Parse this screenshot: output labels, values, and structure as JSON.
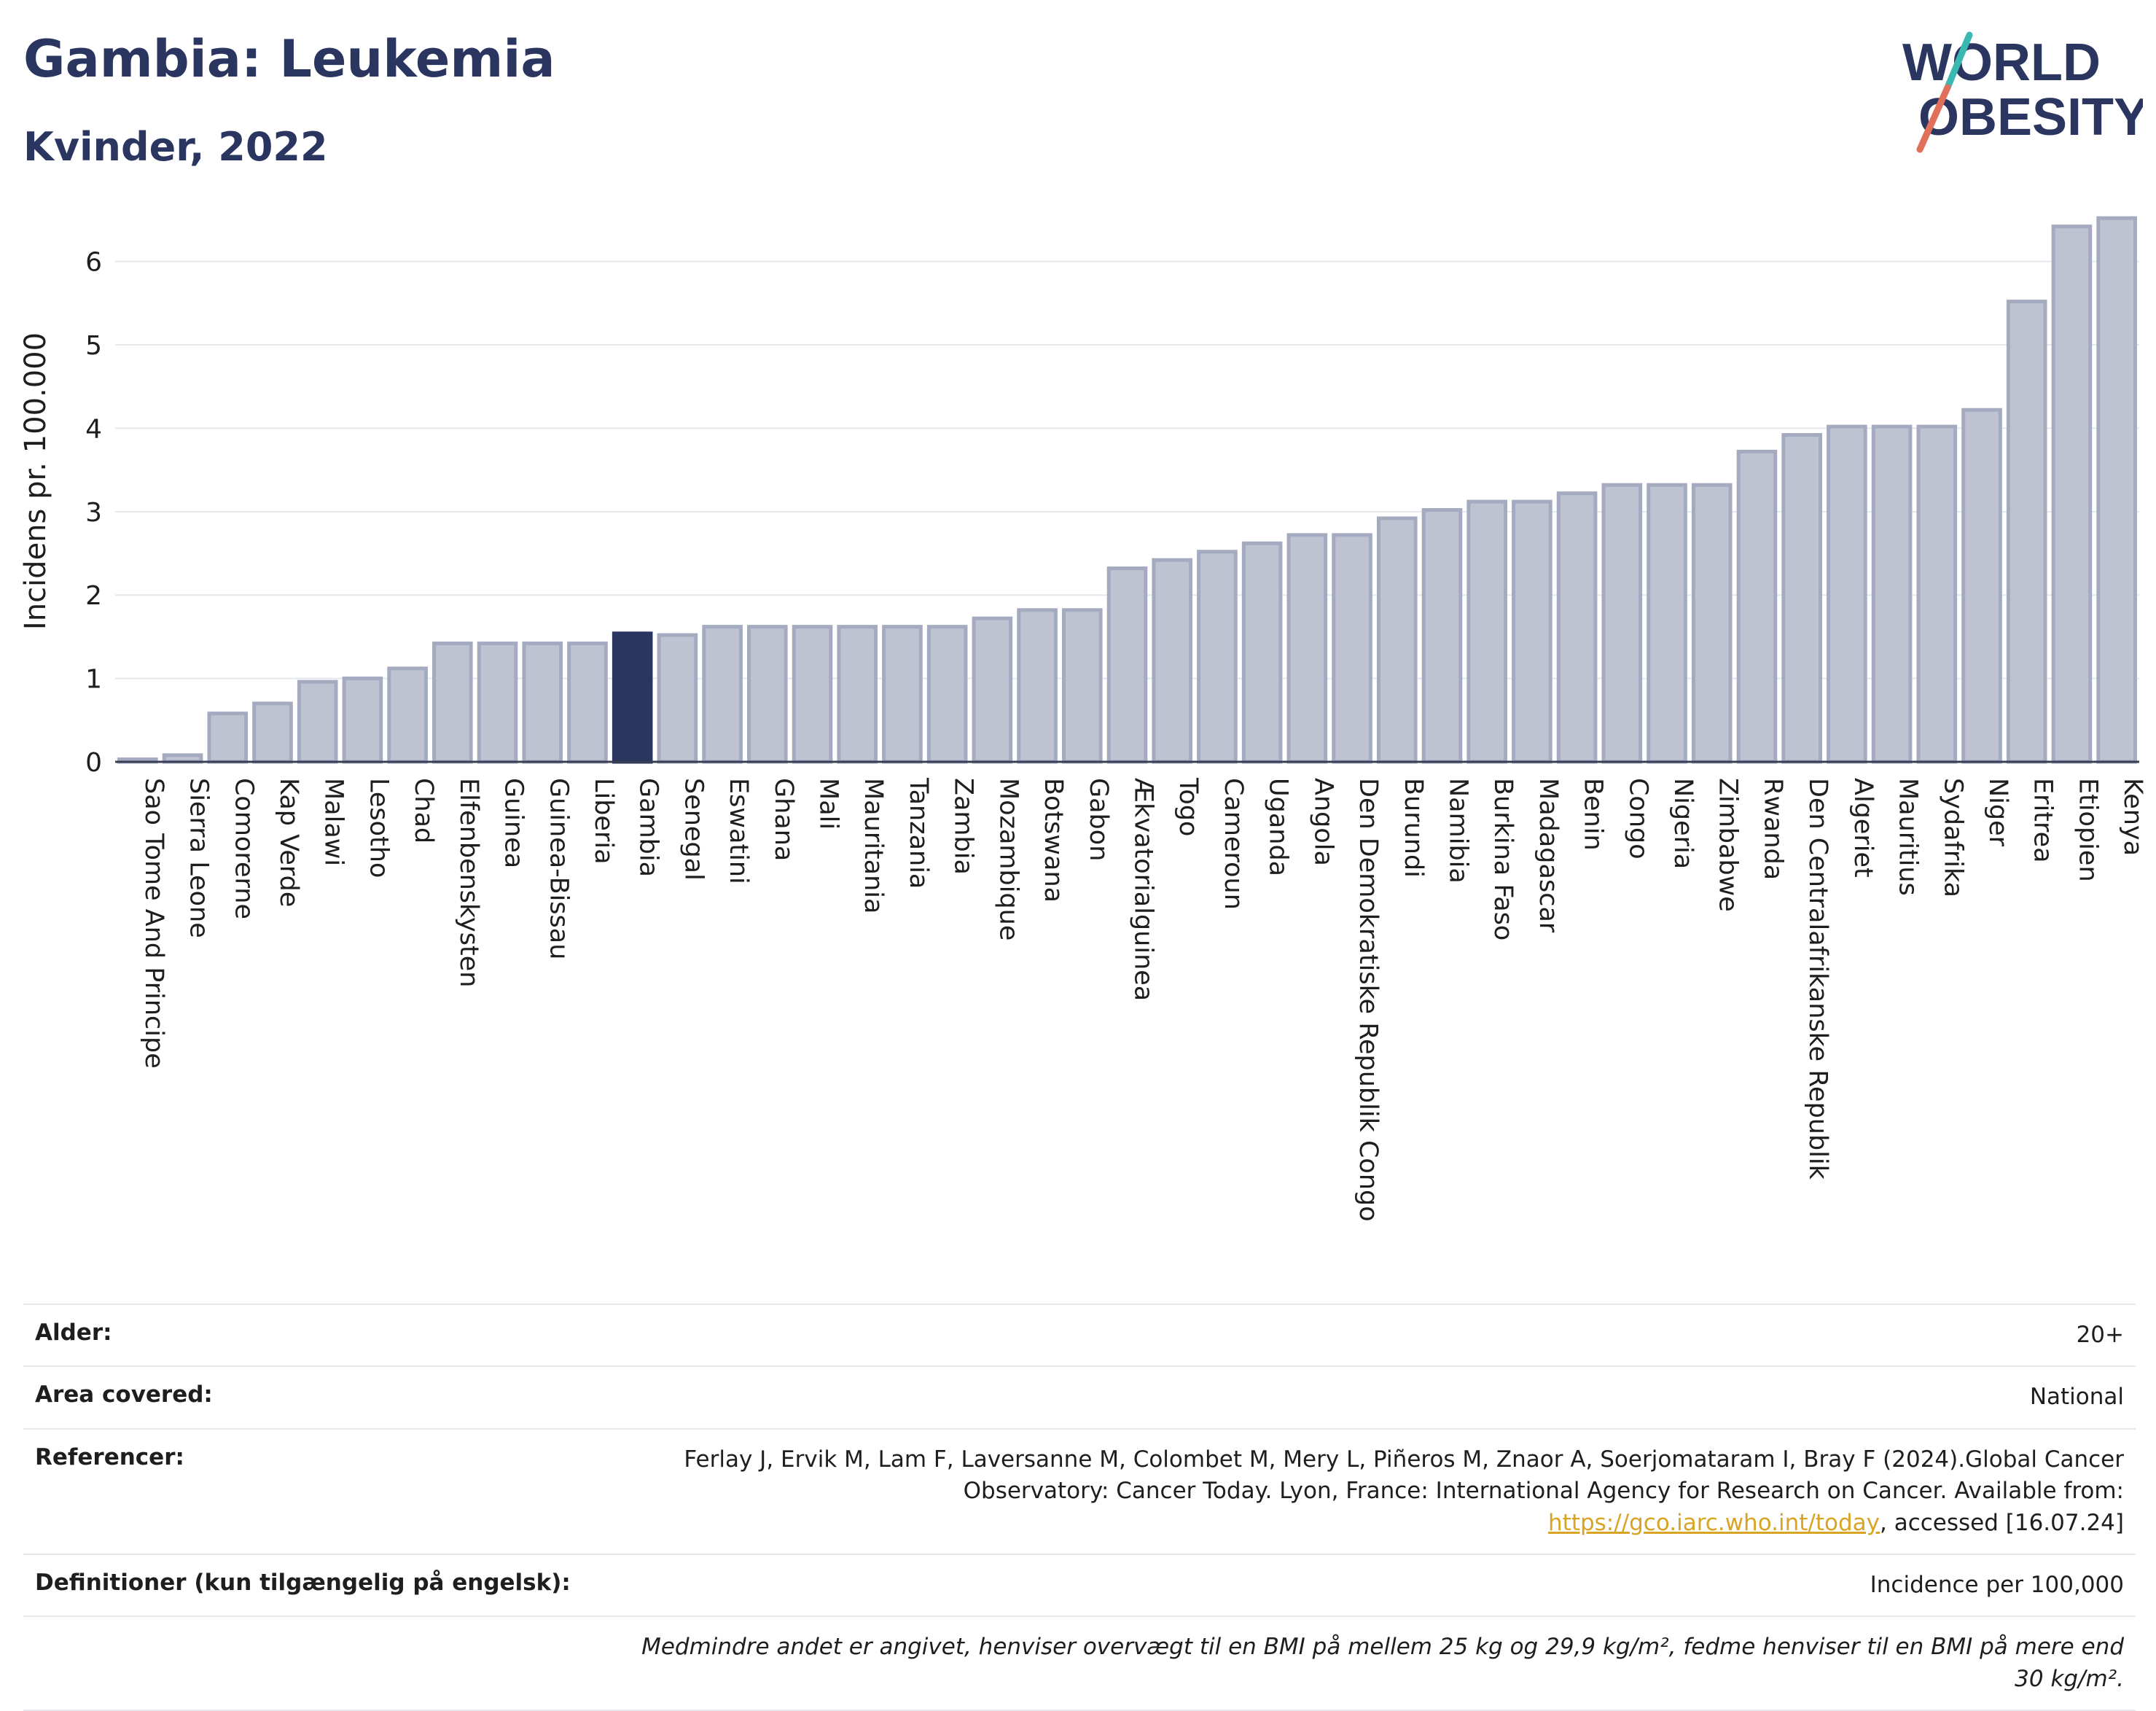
{
  "header": {
    "title": "Gambia: Leukemia",
    "subtitle": "Kvinder, 2022"
  },
  "logo": {
    "line1": "WORLD",
    "line2": "OBESITY"
  },
  "colors": {
    "bar_fill": "#bfc3d1",
    "bar_stroke": "#a4aabf",
    "highlight": "#2a3560",
    "axis_text": "#1e1e1e"
  },
  "chart_data": {
    "type": "bar",
    "title": "Gambia: Leukemia",
    "subtitle": "Kvinder, 2022",
    "ylabel": "Incidens pr. 100.000",
    "xlabel": "",
    "ylim": [
      0,
      6.6
    ],
    "yticks": [
      0,
      1,
      2,
      3,
      4,
      5,
      6
    ],
    "grid": true,
    "highlight": "Gambia",
    "categories": [
      "Sao Tome And Principe",
      "Sierra Leone",
      "Comorerne",
      "Kap Verde",
      "Malawi",
      "Lesotho",
      "Chad",
      "Elfenbenskysten",
      "Guinea",
      "Guinea-Bissau",
      "Liberia",
      "Gambia",
      "Senegal",
      "Eswatini",
      "Ghana",
      "Mali",
      "Mauritania",
      "Tanzania",
      "Zambia",
      "Mozambique",
      "Botswana",
      "Gabon",
      "Ækvatorialguinea",
      "Togo",
      "Cameroun",
      "Uganda",
      "Angola",
      "Den Demokratiske Republik Congo",
      "Burundi",
      "Namibia",
      "Burkina Faso",
      "Madagascar",
      "Benin",
      "Congo",
      "Nigeria",
      "Zimbabwe",
      "Rwanda",
      "Den Centralafrikanske Republik",
      "Algeriet",
      "Mauritius",
      "Sydafrika",
      "Niger",
      "Eritrea",
      "Etiopien",
      "Kenya"
    ],
    "values": [
      0.03,
      0.08,
      0.58,
      0.7,
      0.96,
      1.0,
      1.12,
      1.42,
      1.42,
      1.42,
      1.42,
      1.54,
      1.52,
      1.62,
      1.62,
      1.62,
      1.62,
      1.62,
      1.62,
      1.72,
      1.82,
      1.82,
      2.32,
      2.42,
      2.52,
      2.62,
      2.72,
      2.72,
      2.92,
      3.02,
      3.12,
      3.12,
      3.22,
      3.32,
      3.32,
      3.32,
      3.72,
      3.92,
      4.02,
      4.02,
      4.02,
      4.22,
      5.52,
      6.42,
      6.52
    ]
  },
  "meta": {
    "age_label": "Alder:",
    "age_value": "20+",
    "area_label": "Area covered:",
    "area_value": "National",
    "ref_label": "Referencer:",
    "ref_text_1": "Ferlay J, Ervik M, Lam F, Laversanne M, Colombet M, Mery L, Piñeros M, Znaor A, Soerjomataram I, Bray F (2024).Global Cancer Observatory: Cancer Today. Lyon, France: International Agency for Research on Cancer. Available from: ",
    "ref_link": "https://gco.iarc.who.int/today",
    "ref_text_2": ", accessed [16.07.24]",
    "def_label": "Definitioner (kun tilgængelig på engelsk):",
    "def_value": "Incidence per 100,000",
    "footnote": "Medmindre andet er angivet, henviser overvægt til en BMI på mellem 25 kg og 29,9 kg/m², fedme henviser til en BMI på mere end 30 kg/m²."
  }
}
